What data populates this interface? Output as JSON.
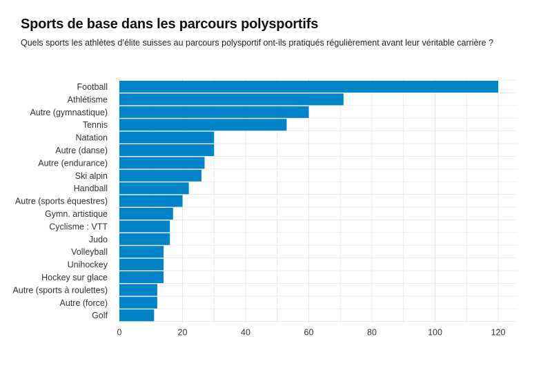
{
  "title": "Sports de base dans les parcours polysportifs",
  "subtitle": "Quels sports les athlètes d’élite suisses au parcours polysportif ont-ils pratiqués régulièrement avant leur véritable carrière ?",
  "colors": {
    "bar": "#0083c9",
    "grid": "#e6e6e6"
  },
  "chart_data": {
    "type": "bar",
    "orientation": "horizontal",
    "title": "Sports de base dans les parcours polysportifs",
    "subtitle": "Quels sports les athlètes d’élite suisses au parcours polysportif ont-ils pratiqués régulièrement avant leur véritable carrière ?",
    "xlabel": "",
    "ylabel": "",
    "categories": [
      "Football",
      "Athlétisme",
      "Autre (gymnastique)",
      "Tennis",
      "Natation",
      "Autre (danse)",
      "Autre (endurance)",
      "Ski alpin",
      "Handball",
      "Autre (sports équestres)",
      "Gymn. artistique",
      "Cyclisme : VTT",
      "Judo",
      "Volleyball",
      "Unihockey",
      "Hockey sur glace",
      "Autre (sports à roulettes)",
      "Autre (force)",
      "Golf"
    ],
    "values": [
      120,
      71,
      60,
      53,
      30,
      30,
      27,
      26,
      22,
      20,
      17,
      16,
      16,
      14,
      14,
      14,
      12,
      12,
      11
    ],
    "xlim": [
      0,
      126
    ],
    "xticks": [
      0,
      20,
      40,
      60,
      80,
      100,
      120
    ],
    "grid": true,
    "legend": "none"
  }
}
